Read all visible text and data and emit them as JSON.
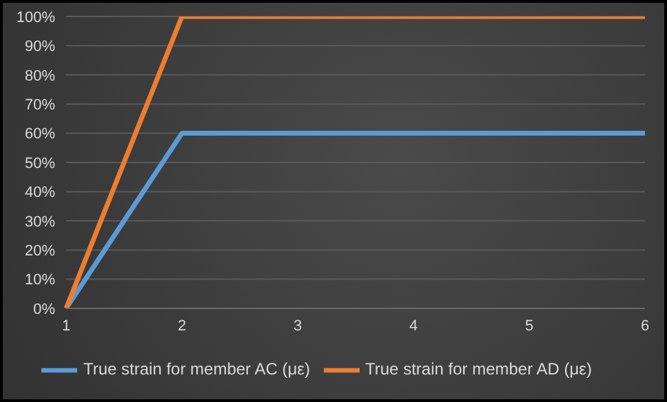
{
  "chart_data": {
    "type": "line",
    "categories": [
      "1",
      "2",
      "3",
      "4",
      "5",
      "6"
    ],
    "series": [
      {
        "name": "True strain for member  AC (με)",
        "color": "#5b9bd5",
        "values": [
          0,
          60,
          60,
          60,
          60,
          60
        ]
      },
      {
        "name": "True strain for member  AD (με)",
        "color": "#ed7d31",
        "values": [
          0,
          100,
          100,
          100,
          100,
          100
        ]
      }
    ],
    "ylim": [
      0,
      100
    ],
    "yticks": [
      {
        "value": 0,
        "label": "0%"
      },
      {
        "value": 10,
        "label": "10%"
      },
      {
        "value": 20,
        "label": "20%"
      },
      {
        "value": 30,
        "label": "30%"
      },
      {
        "value": 40,
        "label": "40%"
      },
      {
        "value": 50,
        "label": "50%"
      },
      {
        "value": 60,
        "label": "60%"
      },
      {
        "value": 70,
        "label": "70%"
      },
      {
        "value": 80,
        "label": "80%"
      },
      {
        "value": 90,
        "label": "90%"
      },
      {
        "value": 100,
        "label": "100%"
      }
    ],
    "grid": "y",
    "legend": "bottom",
    "marker": "none",
    "line_style": "solid"
  }
}
